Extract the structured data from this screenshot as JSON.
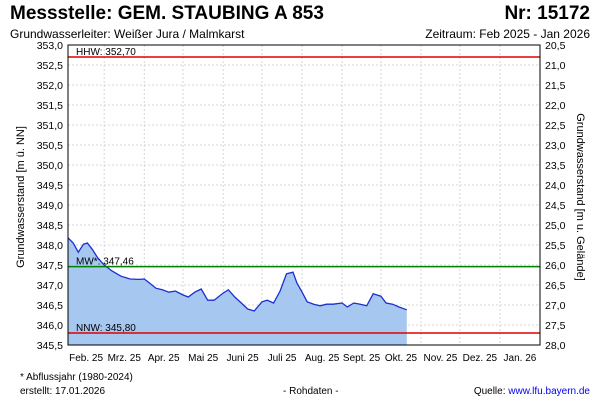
{
  "header": {
    "title": "Messstelle: GEM. STAUBING A 853",
    "number": "Nr: 15172",
    "aquifer": "Grundwasserleiter:  Weißer Jura / Malmkarst",
    "period": "Zeitraum: Feb 2025 - Jan 2026"
  },
  "footer": {
    "footnote": "* Abflussjahr (1980-2024)",
    "created": "erstellt:  17.01.2026",
    "raw_data": "- Rohdaten -",
    "source_prefix": "Quelle: ",
    "source_link": "www.lfu.bayern.de"
  },
  "chart_data": {
    "type": "area",
    "ylabel": "Grundwasserstand [m ü. NN]",
    "ylabel_right": "Grundwasserstand [m u. Gelände]",
    "ylim": [
      345.5,
      353.0
    ],
    "y_ticks": [
      "353,0",
      "352,5",
      "352,0",
      "351,5",
      "351,0",
      "350,5",
      "350,0",
      "349,5",
      "349,0",
      "348,5",
      "348,0",
      "347,5",
      "347,0",
      "346,5",
      "346,0",
      "345,5"
    ],
    "y_ticks_right": [
      "20,5",
      "21,0",
      "21,5",
      "22,0",
      "22,5",
      "23,0",
      "23,5",
      "24,0",
      "24,5",
      "25,0",
      "25,5",
      "26,0",
      "26,5",
      "27,0",
      "27,5",
      "28,0"
    ],
    "x_ticks": [
      "Feb. 25",
      "Mrz. 25",
      "Apr. 25",
      "Mai 25",
      "Juni 25",
      "Juli 25",
      "Aug. 25",
      "Sept. 25",
      "Okt. 25",
      "Nov. 25",
      "Dez. 25",
      "Jan. 26"
    ],
    "grid": true,
    "fill_color": "#a6c8f0",
    "line_color": "#1a2fd0",
    "reference_lines": [
      {
        "label": "HHW: 352,70",
        "value": 352.7,
        "color": "#e00000"
      },
      {
        "label": "MW*: 347,46",
        "value": 347.46,
        "color": "#008000"
      },
      {
        "label": "NNW: 345,80",
        "value": 345.8,
        "color": "#e00000"
      }
    ],
    "series": [
      {
        "x": [
          "2025-02-01",
          "2025-02-05",
          "2025-02-09",
          "2025-02-13",
          "2025-02-16",
          "2025-02-20",
          "2025-02-24",
          "2025-03-01",
          "2025-03-07",
          "2025-03-14",
          "2025-03-21",
          "2025-03-28",
          "2025-04-01",
          "2025-04-05",
          "2025-04-10",
          "2025-04-15",
          "2025-04-20",
          "2025-04-25",
          "2025-05-01",
          "2025-05-05",
          "2025-05-10",
          "2025-05-15",
          "2025-05-20",
          "2025-05-25",
          "2025-06-01",
          "2025-06-05",
          "2025-06-10",
          "2025-06-15",
          "2025-06-20",
          "2025-06-25",
          "2025-07-01",
          "2025-07-05",
          "2025-07-10",
          "2025-07-15",
          "2025-07-20",
          "2025-07-25",
          "2025-07-28",
          "2025-08-01",
          "2025-08-05",
          "2025-08-10",
          "2025-08-15",
          "2025-08-20",
          "2025-08-25",
          "2025-09-01",
          "2025-09-05",
          "2025-09-10",
          "2025-09-15",
          "2025-09-20",
          "2025-09-25",
          "2025-10-01",
          "2025-10-05",
          "2025-10-10",
          "2025-10-15",
          "2025-10-21"
        ],
        "values": [
          348.18,
          348.05,
          347.82,
          348.02,
          348.05,
          347.88,
          347.68,
          347.5,
          347.35,
          347.22,
          347.15,
          347.14,
          347.15,
          347.05,
          346.92,
          346.88,
          346.82,
          346.85,
          346.75,
          346.7,
          346.82,
          346.9,
          346.62,
          346.62,
          346.8,
          346.88,
          346.7,
          346.55,
          346.4,
          346.35,
          346.58,
          346.62,
          346.55,
          346.85,
          347.28,
          347.32,
          347.05,
          346.82,
          346.58,
          346.52,
          346.48,
          346.52,
          346.52,
          346.55,
          346.45,
          346.55,
          346.52,
          346.48,
          346.78,
          346.72,
          346.55,
          346.52,
          346.45,
          346.38
        ]
      }
    ]
  }
}
